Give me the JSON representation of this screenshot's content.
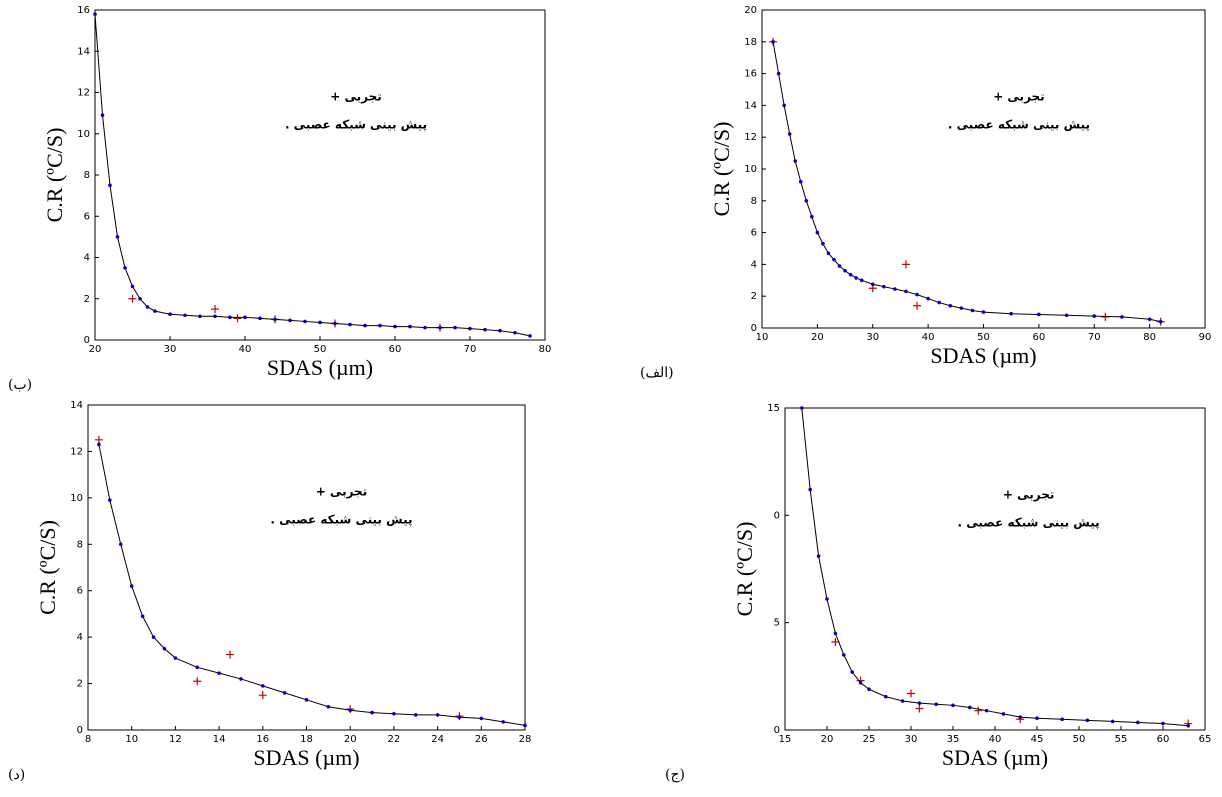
{
  "chart_data": [
    {
      "type": "line",
      "panel_label": "(ب)",
      "x_label": "SDAS (µm)",
      "y_label": "C.R (ºC/S)",
      "xlim": [
        20,
        80
      ],
      "xticks": [
        20,
        30,
        40,
        50,
        60,
        70,
        80
      ],
      "ylim": [
        0,
        16
      ],
      "yticks": [
        0,
        2,
        4,
        6,
        8,
        10,
        12,
        14,
        16
      ],
      "series": [
        {
          "name": "تجربی +",
          "color": "#cc0000",
          "marker": "plus",
          "x": [
            25,
            36,
            39,
            44,
            52,
            66
          ],
          "values": [
            2.0,
            1.5,
            1.05,
            1.0,
            0.8,
            0.6
          ]
        },
        {
          "name": "پیش بینی شبکه عصبی .",
          "color": "#0000cc",
          "line_color": "#000000",
          "marker": "dot",
          "x": [
            20,
            21,
            22,
            23,
            24,
            25,
            26,
            27,
            28,
            30,
            32,
            34,
            36,
            38,
            40,
            42,
            44,
            46,
            48,
            50,
            52,
            54,
            56,
            58,
            60,
            62,
            64,
            66,
            68,
            70,
            72,
            74,
            76,
            78
          ],
          "values": [
            15.8,
            10.9,
            7.5,
            5.0,
            3.5,
            2.6,
            2.0,
            1.6,
            1.4,
            1.25,
            1.2,
            1.15,
            1.15,
            1.1,
            1.1,
            1.05,
            1.0,
            0.95,
            0.9,
            0.85,
            0.8,
            0.75,
            0.7,
            0.7,
            0.65,
            0.65,
            0.6,
            0.6,
            0.6,
            0.55,
            0.5,
            0.45,
            0.35,
            0.2
          ]
        }
      ]
    },
    {
      "type": "line",
      "panel_label": "(الف)",
      "x_label": "SDAS (µm)",
      "y_label": "C.R (ºC/S)",
      "xlim": [
        10,
        90
      ],
      "xticks": [
        10,
        20,
        30,
        40,
        50,
        60,
        70,
        80,
        90
      ],
      "ylim": [
        0,
        20
      ],
      "yticks": [
        0,
        2,
        4,
        6,
        8,
        10,
        12,
        14,
        16,
        18,
        20
      ],
      "series": [
        {
          "name": "تجربی +",
          "color": "#cc0000",
          "marker": "plus",
          "x": [
            12,
            30,
            36,
            38,
            72,
            82
          ],
          "values": [
            18,
            2.5,
            4.0,
            1.4,
            0.7,
            0.4
          ]
        },
        {
          "name": "پیش بینی شبکه عصبی .",
          "color": "#0000cc",
          "line_color": "#000000",
          "marker": "dot",
          "x": [
            12,
            13,
            14,
            15,
            16,
            17,
            18,
            19,
            20,
            21,
            22,
            23,
            24,
            25,
            26,
            27,
            28,
            30,
            32,
            34,
            36,
            38,
            40,
            42,
            44,
            46,
            48,
            50,
            55,
            60,
            65,
            70,
            75,
            80,
            82
          ],
          "values": [
            18,
            16,
            14,
            12.2,
            10.5,
            9.2,
            8,
            7,
            6,
            5.3,
            4.7,
            4.3,
            3.9,
            3.6,
            3.35,
            3.15,
            3.0,
            2.75,
            2.6,
            2.45,
            2.3,
            2.1,
            1.85,
            1.6,
            1.4,
            1.25,
            1.1,
            1.0,
            0.9,
            0.85,
            0.8,
            0.75,
            0.7,
            0.55,
            0.4
          ]
        }
      ]
    },
    {
      "type": "line",
      "panel_label": "(د)",
      "x_label": "SDAS (µm)",
      "y_label": "C.R (ºC/S)",
      "xlim": [
        8,
        28
      ],
      "xticks": [
        8,
        10,
        12,
        14,
        16,
        18,
        20,
        22,
        24,
        26,
        28
      ],
      "ylim": [
        0,
        14
      ],
      "yticks": [
        0,
        2,
        4,
        6,
        8,
        10,
        12,
        14
      ],
      "series": [
        {
          "name": "تجربی +",
          "color": "#cc0000",
          "marker": "plus",
          "x": [
            8.5,
            13,
            14.5,
            16,
            20,
            25
          ],
          "values": [
            12.5,
            2.1,
            3.25,
            1.5,
            0.9,
            0.6
          ]
        },
        {
          "name": "پیش بینی شبکه عصبی .",
          "color": "#0000cc",
          "line_color": "#000000",
          "marker": "dot",
          "x": [
            8.5,
            9,
            9.5,
            10,
            10.5,
            11,
            11.5,
            12,
            13,
            14,
            15,
            16,
            17,
            18,
            19,
            20,
            21,
            22,
            23,
            24,
            25,
            26,
            27,
            28
          ],
          "values": [
            12.3,
            9.9,
            8.0,
            6.2,
            4.9,
            4.0,
            3.5,
            3.1,
            2.7,
            2.45,
            2.2,
            1.9,
            1.6,
            1.3,
            1.0,
            0.85,
            0.75,
            0.7,
            0.65,
            0.65,
            0.55,
            0.5,
            0.35,
            0.2
          ]
        }
      ]
    },
    {
      "type": "line",
      "panel_label": "(ج)",
      "x_label": "SDAS (µm)",
      "y_label": "C.R (ºC/S)",
      "xlim": [
        15,
        65
      ],
      "xticks": [
        15,
        20,
        25,
        30,
        35,
        40,
        45,
        50,
        55,
        60,
        65
      ],
      "ylim": [
        0,
        15
      ],
      "yticks": [
        0,
        5,
        {
          "value": 10,
          "label": "0"
        },
        15
      ],
      "series": [
        {
          "name": "تجربی +",
          "color": "#cc0000",
          "marker": "plus",
          "x": [
            21,
            24,
            30,
            31,
            38,
            43,
            63
          ],
          "values": [
            4.1,
            2.3,
            1.7,
            1.0,
            0.9,
            0.5,
            0.3
          ]
        },
        {
          "name": "پیش بینی شبکه عصبی .",
          "color": "#0000cc",
          "line_color": "#000000",
          "marker": "dot",
          "x": [
            17,
            18,
            19,
            20,
            21,
            22,
            23,
            24,
            25,
            27,
            29,
            31,
            33,
            35,
            37,
            39,
            41,
            43,
            45,
            48,
            51,
            54,
            57,
            60,
            63
          ],
          "values": [
            15,
            11.2,
            8.1,
            6.1,
            4.5,
            3.5,
            2.7,
            2.2,
            1.9,
            1.55,
            1.35,
            1.25,
            1.2,
            1.15,
            1.05,
            0.9,
            0.75,
            0.6,
            0.55,
            0.5,
            0.45,
            0.4,
            0.35,
            0.3,
            0.2
          ]
        }
      ]
    }
  ]
}
